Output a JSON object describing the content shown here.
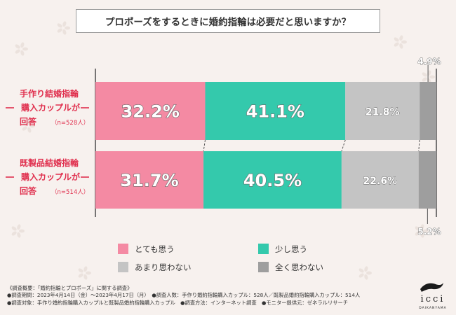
{
  "title": "プロポーズをするときに婚約指輪は必要だと思いますか？",
  "chart_data": {
    "type": "bar",
    "orientation": "horizontal",
    "stacked": true,
    "unit": "%",
    "categories": [
      {
        "lines": [
          "手作り結婚指輪",
          "購入カップルが",
          "回答"
        ],
        "n": "（n=528人）"
      },
      {
        "lines": [
          "既製品結婚指輪",
          "購入カップルが",
          "回答"
        ],
        "n": "（n=514人）"
      }
    ],
    "series": [
      {
        "name": "とても思う",
        "color": "#f48aa3",
        "values": [
          32.2,
          31.7
        ],
        "labels": [
          "32.2%",
          "31.7%"
        ]
      },
      {
        "name": "少し思う",
        "color": "#34c9ac",
        "values": [
          41.1,
          40.5
        ],
        "labels": [
          "41.1%",
          "40.5%"
        ]
      },
      {
        "name": "あまり思わない",
        "color": "#c4c4c4",
        "values": [
          21.8,
          22.6
        ],
        "labels": [
          "21.8%",
          "22.6%"
        ]
      },
      {
        "name": "全く思わない",
        "color": "#9e9e9e",
        "values": [
          4.9,
          5.2
        ],
        "labels": [
          "4.9%",
          "5.2%"
        ]
      }
    ],
    "legend_position": "bottom",
    "xlim": [
      0,
      100
    ],
    "grid": false
  },
  "footer": {
    "lines": [
      "《調査概要：「婚約指輪とプロポーズ」に関する調査》",
      "●調査期間：2023年4月14日（金）〜2023年4月17日（月）　●調査人数：手作り婚約指輪購入カップル：528人／既製品婚約指輪購入カップル：514人",
      "●調査対象：手作り婚約指輪購入カップルと既製品婚約指輪購入カップル　●調査方法：インターネット調査　●モニター提供元：ゼネラルリサーチ"
    ]
  },
  "logo": {
    "name": "icci",
    "sub": "DAIKANYAMA"
  },
  "colors": {
    "category_label": "#e0304e",
    "value_text": "#ffffff",
    "value_stroke": "#666666",
    "outline": "#555555"
  }
}
